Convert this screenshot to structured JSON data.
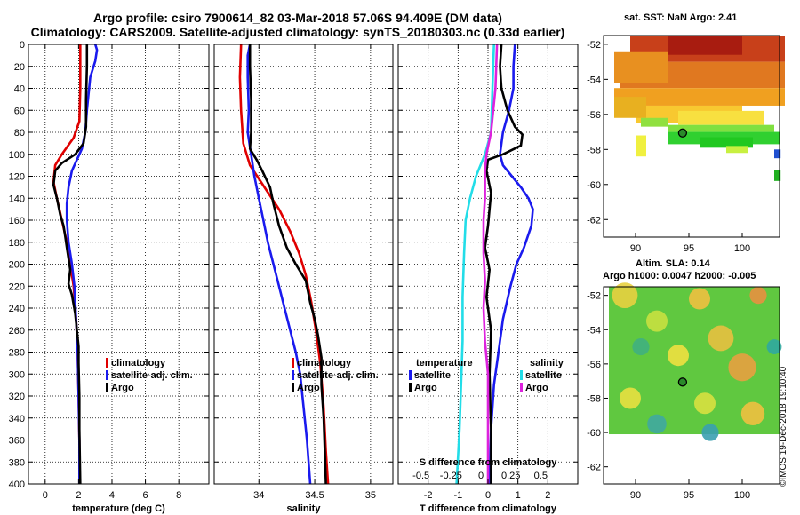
{
  "header": {
    "title_line1": "Argo profile: csiro 7900614_82 03-Mar-2018 57.06S 94.409E (DM data)",
    "title_line2": "Climatology: CARS2009. Satellite-adjusted climatology: synTS_20180303.nc (0.33d earlier)"
  },
  "colors": {
    "climatology": "#e00000",
    "satellite": "#1a1aee",
    "argo": "#000000",
    "t_satellite": "#1a1aee",
    "s_satellite": "#22dde8",
    "s_argo": "#dd22dd"
  },
  "legend": {
    "climatology": "climatology",
    "satellite": "satellite-adj. clim.",
    "argo": "Argo",
    "temperature_header": "temperature",
    "salinity_header": "salinity",
    "satellite_short": "satellite",
    "argo_short": "Argo"
  },
  "side": {
    "sst_title": "sat. SST: NaN Argo: 2.41",
    "sla_title_1": "Altim. SLA: 0.14",
    "sla_title_2": "Argo h1000: 0.0047 h2000: -0.005",
    "lon_ticks": [
      "90",
      "95",
      "100"
    ],
    "lat_ticks": [
      "-52",
      "-54",
      "-56",
      "-58",
      "-60",
      "-62"
    ],
    "credit": "©IMOS 19-Dec-2018 19:10:40"
  },
  "chart_data": [
    {
      "type": "line",
      "name": "temperature-profile",
      "xlabel": "temperature (deg C)",
      "ylabel": "depth",
      "xlim": [
        -1,
        9.8
      ],
      "ylim": [
        0,
        400
      ],
      "xticks": [
        0,
        2,
        4,
        6,
        8
      ],
      "yticks": [
        0,
        20,
        40,
        60,
        80,
        100,
        120,
        140,
        160,
        180,
        200,
        220,
        240,
        260,
        280,
        300,
        320,
        340,
        360,
        380,
        400
      ],
      "series": [
        {
          "name": "climatology",
          "color_key": "climatology",
          "points": [
            [
              2.1,
              0
            ],
            [
              2.1,
              40
            ],
            [
              2.05,
              70
            ],
            [
              1.7,
              85
            ],
            [
              1.0,
              100
            ],
            [
              0.6,
              110
            ],
            [
              0.5,
              125
            ],
            [
              0.7,
              140
            ],
            [
              1.0,
              160
            ],
            [
              1.3,
              180
            ],
            [
              1.5,
              200
            ],
            [
              1.7,
              220
            ],
            [
              1.85,
              250
            ],
            [
              1.95,
              280
            ],
            [
              2.0,
              320
            ],
            [
              2.05,
              360
            ],
            [
              2.05,
              400
            ]
          ]
        },
        {
          "name": "satellite-adj. clim.",
          "color_key": "satellite",
          "points": [
            [
              3.0,
              0
            ],
            [
              3.1,
              5
            ],
            [
              3.0,
              15
            ],
            [
              2.7,
              30
            ],
            [
              2.5,
              60
            ],
            [
              2.4,
              80
            ],
            [
              2.2,
              95
            ],
            [
              1.9,
              105
            ],
            [
              1.6,
              115
            ],
            [
              1.4,
              130
            ],
            [
              1.3,
              145
            ],
            [
              1.3,
              160
            ],
            [
              1.4,
              180
            ],
            [
              1.6,
              200
            ],
            [
              1.75,
              220
            ],
            [
              1.85,
              250
            ],
            [
              1.95,
              280
            ],
            [
              2.0,
              320
            ],
            [
              2.05,
              360
            ],
            [
              2.05,
              400
            ]
          ]
        },
        {
          "name": "Argo",
          "color_key": "argo",
          "points": [
            [
              2.5,
              0
            ],
            [
              2.5,
              20
            ],
            [
              2.45,
              50
            ],
            [
              2.45,
              75
            ],
            [
              2.3,
              90
            ],
            [
              1.8,
              100
            ],
            [
              1.0,
              108
            ],
            [
              0.6,
              115
            ],
            [
              0.5,
              128
            ],
            [
              0.7,
              140
            ],
            [
              0.9,
              155
            ],
            [
              1.1,
              165
            ],
            [
              1.2,
              175
            ],
            [
              1.3,
              185
            ],
            [
              1.4,
              195
            ],
            [
              1.5,
              205
            ],
            [
              1.4,
              218
            ],
            [
              1.6,
              228
            ],
            [
              1.8,
              245
            ],
            [
              1.9,
              260
            ],
            [
              2.0,
              275
            ],
            [
              2.0,
              290
            ],
            [
              2.05,
              320
            ],
            [
              2.05,
              350
            ],
            [
              2.1,
              400
            ]
          ]
        }
      ]
    },
    {
      "type": "line",
      "name": "salinity-profile",
      "xlabel": "salinity",
      "ylabel": "depth",
      "xlim": [
        33.6,
        35.2
      ],
      "ylim": [
        0,
        400
      ],
      "xticks": [
        34,
        34.5,
        35
      ],
      "series": [
        {
          "name": "climatology",
          "color_key": "climatology",
          "points": [
            [
              33.84,
              0
            ],
            [
              33.83,
              30
            ],
            [
              33.84,
              60
            ],
            [
              33.86,
              90
            ],
            [
              33.92,
              110
            ],
            [
              34.05,
              130
            ],
            [
              34.18,
              150
            ],
            [
              34.28,
              170
            ],
            [
              34.36,
              190
            ],
            [
              34.42,
              210
            ],
            [
              34.47,
              235
            ],
            [
              34.51,
              260
            ],
            [
              34.55,
              290
            ],
            [
              34.58,
              330
            ],
            [
              34.6,
              370
            ],
            [
              34.62,
              400
            ]
          ]
        },
        {
          "name": "satellite-adj. clim.",
          "color_key": "satellite",
          "points": [
            [
              33.92,
              0
            ],
            [
              33.9,
              10
            ],
            [
              33.9,
              30
            ],
            [
              33.91,
              60
            ],
            [
              33.9,
              80
            ],
            [
              33.93,
              100
            ],
            [
              33.96,
              120
            ],
            [
              34.0,
              140
            ],
            [
              34.04,
              160
            ],
            [
              34.08,
              180
            ],
            [
              34.13,
              200
            ],
            [
              34.18,
              220
            ],
            [
              34.23,
              240
            ],
            [
              34.28,
              260
            ],
            [
              34.33,
              280
            ],
            [
              34.37,
              300
            ],
            [
              34.4,
              330
            ],
            [
              34.43,
              360
            ],
            [
              34.46,
              400
            ]
          ]
        },
        {
          "name": "Argo",
          "color_key": "argo",
          "points": [
            [
              33.92,
              0
            ],
            [
              33.92,
              20
            ],
            [
              33.93,
              50
            ],
            [
              33.93,
              80
            ],
            [
              33.92,
              95
            ],
            [
              33.98,
              105
            ],
            [
              34.03,
              115
            ],
            [
              34.1,
              130
            ],
            [
              34.13,
              145
            ],
            [
              34.18,
              165
            ],
            [
              34.25,
              185
            ],
            [
              34.33,
              200
            ],
            [
              34.42,
              215
            ],
            [
              34.46,
              235
            ],
            [
              34.5,
              250
            ],
            [
              34.53,
              265
            ],
            [
              34.56,
              285
            ],
            [
              34.56,
              310
            ],
            [
              34.58,
              340
            ],
            [
              34.59,
              370
            ],
            [
              34.6,
              400
            ]
          ]
        }
      ]
    },
    {
      "type": "line",
      "name": "difference-profile",
      "xlabel": "T difference from climatology",
      "top_axis_label": "S difference from climatology",
      "ylabel": "depth",
      "xlim": [
        -3.0,
        3.0
      ],
      "ylim": [
        0,
        400
      ],
      "xticks": [
        -2,
        -1,
        0,
        1,
        2
      ],
      "top_xticks": [
        "-0.5",
        "-0.25",
        "0",
        "0.25",
        "0.5"
      ],
      "series": [
        {
          "name": "temperature satellite",
          "color_key": "t_satellite",
          "points": [
            [
              0.9,
              0
            ],
            [
              0.85,
              20
            ],
            [
              0.85,
              40
            ],
            [
              0.7,
              60
            ],
            [
              0.5,
              80
            ],
            [
              0.4,
              100
            ],
            [
              0.5,
              110
            ],
            [
              0.8,
              120
            ],
            [
              1.1,
              130
            ],
            [
              1.35,
              140
            ],
            [
              1.5,
              150
            ],
            [
              1.45,
              165
            ],
            [
              1.2,
              185
            ],
            [
              0.95,
              200
            ],
            [
              0.75,
              220
            ],
            [
              0.5,
              250
            ],
            [
              0.35,
              280
            ],
            [
              0.2,
              310
            ],
            [
              0.1,
              350
            ],
            [
              0.05,
              400
            ]
          ]
        },
        {
          "name": "temperature Argo",
          "color_key": "argo",
          "points": [
            [
              0.45,
              0
            ],
            [
              0.4,
              20
            ],
            [
              0.45,
              40
            ],
            [
              0.65,
              60
            ],
            [
              0.9,
              75
            ],
            [
              1.15,
              82
            ],
            [
              1.1,
              92
            ],
            [
              0.5,
              100
            ],
            [
              0.0,
              105
            ],
            [
              -0.05,
              115
            ],
            [
              0.1,
              135
            ],
            [
              0.0,
              165
            ],
            [
              -0.1,
              185
            ],
            [
              0.05,
              205
            ],
            [
              -0.05,
              230
            ],
            [
              0.1,
              260
            ],
            [
              0.05,
              300
            ],
            [
              0.1,
              350
            ],
            [
              0.1,
              400
            ]
          ]
        },
        {
          "name": "salinity satellite",
          "color_key": "s_satellite",
          "points": [
            [
              0.2,
              0
            ],
            [
              0.15,
              40
            ],
            [
              0.1,
              80
            ],
            [
              -0.1,
              100
            ],
            [
              -0.4,
              120
            ],
            [
              -0.6,
              140
            ],
            [
              -0.75,
              160
            ],
            [
              -0.8,
              190
            ],
            [
              -0.85,
              230
            ],
            [
              -0.85,
              270
            ],
            [
              -0.9,
              310
            ],
            [
              -0.95,
              350
            ],
            [
              -1.05,
              400
            ]
          ]
        },
        {
          "name": "salinity Argo",
          "color_key": "s_argo",
          "points": [
            [
              0.3,
              0
            ],
            [
              0.25,
              40
            ],
            [
              0.1,
              80
            ],
            [
              -0.05,
              100
            ],
            [
              -0.1,
              115
            ],
            [
              -0.1,
              140
            ],
            [
              -0.15,
              160
            ],
            [
              -0.15,
              190
            ],
            [
              -0.1,
              215
            ],
            [
              -0.15,
              240
            ],
            [
              -0.1,
              270
            ],
            [
              0.0,
              300
            ],
            [
              0.0,
              340
            ],
            [
              0.0,
              400
            ]
          ]
        }
      ]
    },
    {
      "type": "heatmap",
      "name": "sst-map",
      "title": "sat. SST: NaN Argo: 2.41",
      "xlim": [
        87,
        103.5
      ],
      "ylim": [
        -63,
        -51.5
      ],
      "xticks": [
        90,
        95,
        100
      ],
      "yticks": [
        -52,
        -54,
        -56,
        -58,
        -60,
        -62
      ],
      "argo_position": [
        94.409,
        -57.06
      ]
    },
    {
      "type": "heatmap",
      "name": "sla-map",
      "title": "Altim. SLA: 0.14",
      "xlim": [
        87,
        103.5
      ],
      "ylim": [
        -63,
        -51.5
      ],
      "xticks": [
        90,
        95,
        100
      ],
      "yticks": [
        -52,
        -54,
        -56,
        -58,
        -60,
        -62
      ],
      "argo_position": [
        94.409,
        -57.06
      ]
    }
  ]
}
